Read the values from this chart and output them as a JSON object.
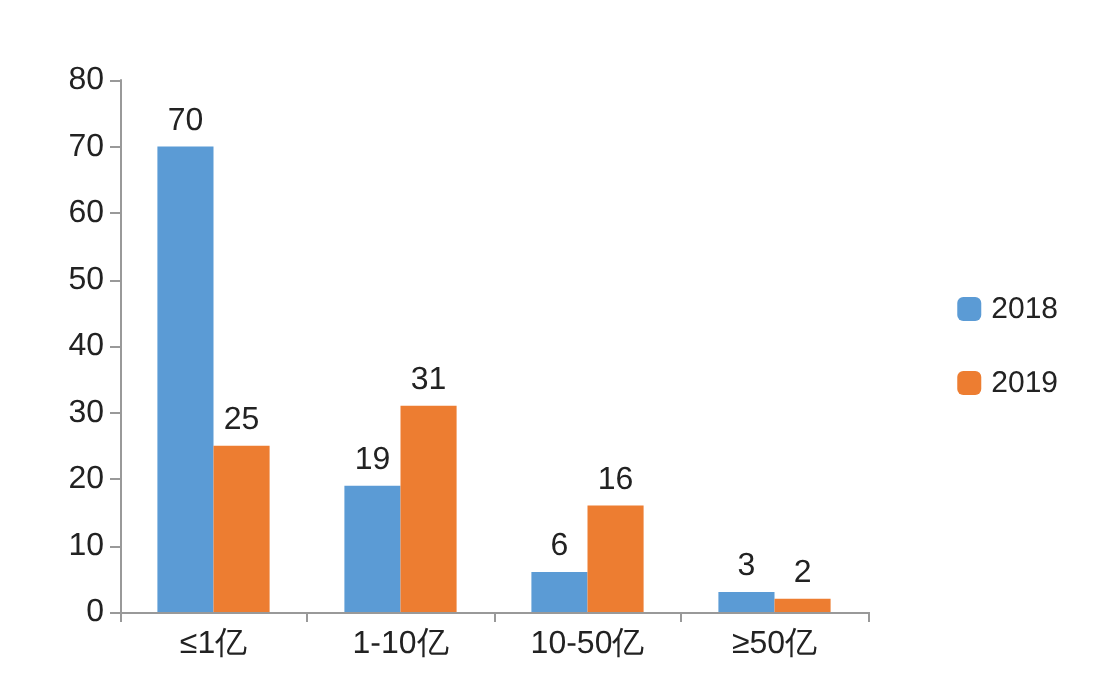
{
  "chart_data": {
    "type": "bar",
    "categories": [
      "≤1亿",
      "1-10亿",
      "10-50亿",
      "≥50亿"
    ],
    "series": [
      {
        "name": "2018",
        "color": "#5b9bd5",
        "values": [
          70,
          19,
          6,
          3
        ]
      },
      {
        "name": "2019",
        "color": "#ed7d31",
        "values": [
          25,
          31,
          16,
          2
        ]
      }
    ],
    "ylim": [
      0,
      80
    ],
    "yticks": [
      0,
      10,
      20,
      30,
      40,
      50,
      60,
      70,
      80
    ],
    "data_labels": true,
    "legend": "right",
    "grid": false
  }
}
